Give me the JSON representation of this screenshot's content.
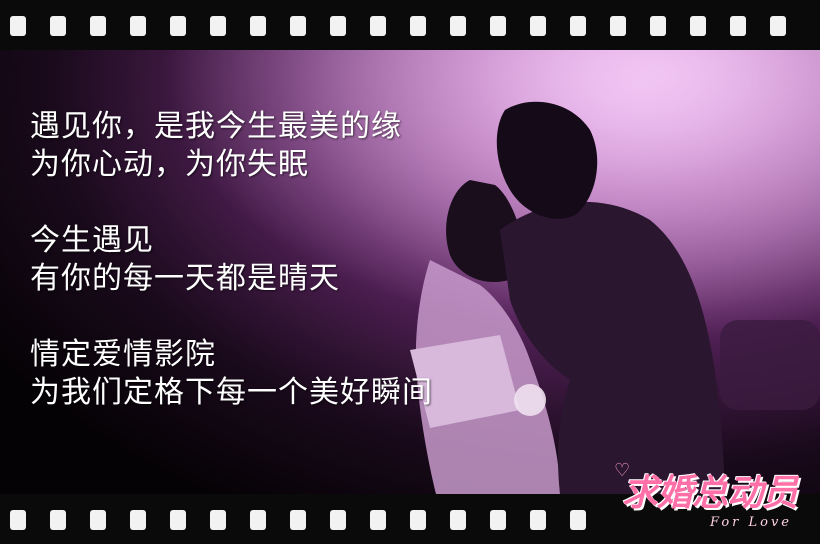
{
  "caption": {
    "stanzas": [
      {
        "lines": [
          "遇见你，是我今生最美的缘",
          "为你心动，为你失眠"
        ]
      },
      {
        "lines": [
          "今生遇见",
          "有你的每一天都是晴天"
        ]
      },
      {
        "lines": [
          "情定爱情影院",
          "为我们定格下每一个美好瞬间"
        ]
      }
    ]
  },
  "logo": {
    "title": "求婚总动员",
    "subtitle": "For Love"
  },
  "colors": {
    "tint": "#a35aa7",
    "highlight": "#e3a6e8",
    "logo": "#ff6fa8"
  }
}
